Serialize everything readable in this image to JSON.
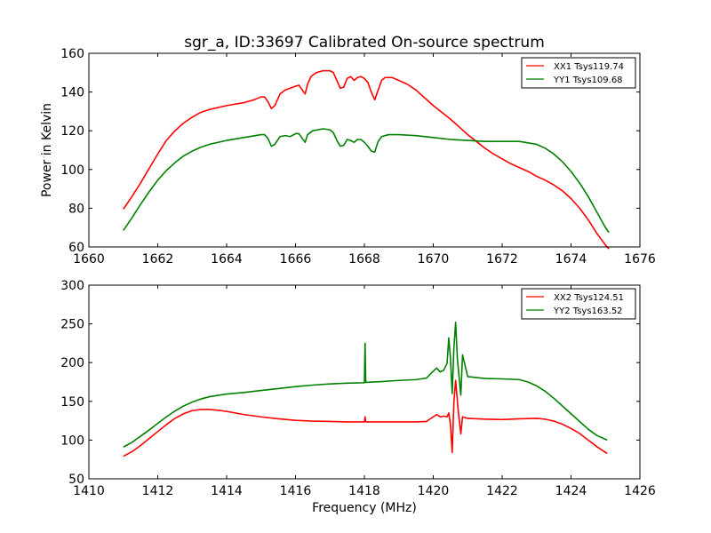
{
  "chart_data": [
    {
      "type": "line",
      "title": "sgr_a, ID:33697 Calibrated On-source spectrum",
      "xlabel": "",
      "ylabel": "Power in Kelvin",
      "xlim": [
        1660,
        1676
      ],
      "ylim": [
        60,
        160
      ],
      "xticks": [
        "1660",
        "1662",
        "1664",
        "1666",
        "1668",
        "1670",
        "1672",
        "1674",
        "1676"
      ],
      "yticks": [
        "60",
        "80",
        "100",
        "120",
        "140",
        "160"
      ],
      "grid": false,
      "legend": "top-right",
      "series": [
        {
          "name": "XX1 Tsys119.74",
          "color": "#ff0000",
          "points": [
            [
              1661.0,
              79.5
            ],
            [
              1661.25,
              86
            ],
            [
              1661.5,
              93
            ],
            [
              1661.75,
              100.5
            ],
            [
              1662.0,
              108
            ],
            [
              1662.25,
              115
            ],
            [
              1662.5,
              120
            ],
            [
              1662.75,
              124
            ],
            [
              1663.0,
              127
            ],
            [
              1663.25,
              129.5
            ],
            [
              1663.5,
              131
            ],
            [
              1663.75,
              132
            ],
            [
              1664.0,
              133
            ],
            [
              1664.5,
              134.5
            ],
            [
              1664.8,
              136
            ],
            [
              1665.0,
              137.5
            ],
            [
              1665.1,
              137.5
            ],
            [
              1665.2,
              135
            ],
            [
              1665.3,
              131.5
            ],
            [
              1665.4,
              133
            ],
            [
              1665.55,
              139
            ],
            [
              1665.7,
              141
            ],
            [
              1665.85,
              142
            ],
            [
              1666.0,
              143
            ],
            [
              1666.1,
              143.5
            ],
            [
              1666.2,
              141
            ],
            [
              1666.28,
              139
            ],
            [
              1666.35,
              144
            ],
            [
              1666.45,
              148
            ],
            [
              1666.6,
              150
            ],
            [
              1666.8,
              151
            ],
            [
              1667.0,
              151
            ],
            [
              1667.1,
              150
            ],
            [
              1667.2,
              146
            ],
            [
              1667.3,
              142
            ],
            [
              1667.4,
              142.5
            ],
            [
              1667.5,
              147
            ],
            [
              1667.6,
              148
            ],
            [
              1667.7,
              146
            ],
            [
              1667.8,
              147.5
            ],
            [
              1667.9,
              148
            ],
            [
              1668.0,
              147
            ],
            [
              1668.1,
              145
            ],
            [
              1668.2,
              140
            ],
            [
              1668.3,
              136
            ],
            [
              1668.4,
              141
            ],
            [
              1668.5,
              146
            ],
            [
              1668.6,
              147.5
            ],
            [
              1668.8,
              147.5
            ],
            [
              1669.0,
              146
            ],
            [
              1669.25,
              144
            ],
            [
              1669.5,
              141
            ],
            [
              1669.75,
              137
            ],
            [
              1670.0,
              133
            ],
            [
              1670.25,
              129.5
            ],
            [
              1670.5,
              126
            ],
            [
              1670.75,
              122
            ],
            [
              1671.0,
              118
            ],
            [
              1671.25,
              114.5
            ],
            [
              1671.5,
              111
            ],
            [
              1671.75,
              108
            ],
            [
              1672.0,
              105.5
            ],
            [
              1672.25,
              103
            ],
            [
              1672.5,
              101
            ],
            [
              1672.75,
              99
            ],
            [
              1673.0,
              96.5
            ],
            [
              1673.25,
              94.5
            ],
            [
              1673.5,
              92
            ],
            [
              1673.75,
              89
            ],
            [
              1674.0,
              85
            ],
            [
              1674.25,
              80
            ],
            [
              1674.5,
              74
            ],
            [
              1674.75,
              67
            ],
            [
              1675.0,
              61
            ],
            [
              1675.1,
              59
            ]
          ]
        },
        {
          "name": "YY1 Tsys109.68",
          "color": "#008000",
          "points": [
            [
              1661.0,
              68.5
            ],
            [
              1661.25,
              75
            ],
            [
              1661.5,
              82
            ],
            [
              1661.75,
              88.5
            ],
            [
              1662.0,
              94.5
            ],
            [
              1662.25,
              99.5
            ],
            [
              1662.5,
              103.5
            ],
            [
              1662.75,
              107
            ],
            [
              1663.0,
              109.5
            ],
            [
              1663.25,
              111.5
            ],
            [
              1663.5,
              113
            ],
            [
              1663.75,
              114
            ],
            [
              1664.0,
              115
            ],
            [
              1664.5,
              116.5
            ],
            [
              1665.0,
              118
            ],
            [
              1665.1,
              118
            ],
            [
              1665.2,
              116
            ],
            [
              1665.3,
              112
            ],
            [
              1665.4,
              113
            ],
            [
              1665.55,
              117
            ],
            [
              1665.7,
              117.5
            ],
            [
              1665.85,
              117
            ],
            [
              1666.0,
              118.5
            ],
            [
              1666.1,
              118.5
            ],
            [
              1666.2,
              116
            ],
            [
              1666.28,
              114
            ],
            [
              1666.35,
              118
            ],
            [
              1666.5,
              120
            ],
            [
              1666.8,
              121
            ],
            [
              1667.0,
              120.5
            ],
            [
              1667.1,
              119
            ],
            [
              1667.2,
              115
            ],
            [
              1667.3,
              112
            ],
            [
              1667.4,
              112.5
            ],
            [
              1667.5,
              115.5
            ],
            [
              1667.6,
              115
            ],
            [
              1667.7,
              114
            ],
            [
              1667.8,
              115.5
            ],
            [
              1667.9,
              115.5
            ],
            [
              1668.0,
              114
            ],
            [
              1668.1,
              112
            ],
            [
              1668.2,
              109.5
            ],
            [
              1668.3,
              109
            ],
            [
              1668.4,
              114.5
            ],
            [
              1668.5,
              117
            ],
            [
              1668.7,
              118
            ],
            [
              1669.0,
              118
            ],
            [
              1669.5,
              117.5
            ],
            [
              1670.0,
              116.5
            ],
            [
              1670.5,
              115.5
            ],
            [
              1671.0,
              115
            ],
            [
              1671.5,
              114.5
            ],
            [
              1672.0,
              114.5
            ],
            [
              1672.5,
              114.5
            ],
            [
              1673.0,
              113
            ],
            [
              1673.25,
              111
            ],
            [
              1673.5,
              108
            ],
            [
              1673.75,
              104
            ],
            [
              1674.0,
              99
            ],
            [
              1674.25,
              93
            ],
            [
              1674.5,
              86
            ],
            [
              1674.75,
              78
            ],
            [
              1675.0,
              70
            ],
            [
              1675.1,
              67.5
            ]
          ]
        }
      ]
    },
    {
      "type": "line",
      "title": "",
      "xlabel": "Frequency (MHz)",
      "ylabel": "",
      "xlim": [
        1410,
        1426
      ],
      "ylim": [
        50,
        300
      ],
      "xticks": [
        "1410",
        "1412",
        "1414",
        "1416",
        "1418",
        "1420",
        "1422",
        "1424",
        "1426"
      ],
      "yticks": [
        "50",
        "100",
        "150",
        "200",
        "250",
        "300"
      ],
      "grid": false,
      "legend": "top-right",
      "series": [
        {
          "name": "XX2 Tsys124.51",
          "color": "#ff0000",
          "points": [
            [
              1411.0,
              79
            ],
            [
              1411.25,
              85
            ],
            [
              1411.5,
              93
            ],
            [
              1411.75,
              102
            ],
            [
              1412.0,
              111
            ],
            [
              1412.25,
              120
            ],
            [
              1412.5,
              128
            ],
            [
              1412.75,
              134
            ],
            [
              1413.0,
              138
            ],
            [
              1413.25,
              139.5
            ],
            [
              1413.5,
              139.5
            ],
            [
              1413.75,
              138.5
            ],
            [
              1414.0,
              137
            ],
            [
              1414.5,
              133
            ],
            [
              1415.0,
              130
            ],
            [
              1415.5,
              127.5
            ],
            [
              1416.0,
              125.5
            ],
            [
              1416.5,
              124.5
            ],
            [
              1417.0,
              124
            ],
            [
              1417.5,
              123.5
            ],
            [
              1418.0,
              123.5
            ],
            [
              1418.02,
              130
            ],
            [
              1418.04,
              123.5
            ],
            [
              1418.5,
              123.5
            ],
            [
              1419.0,
              123.5
            ],
            [
              1419.5,
              123.5
            ],
            [
              1419.8,
              124
            ],
            [
              1420.0,
              130
            ],
            [
              1420.1,
              133
            ],
            [
              1420.2,
              130
            ],
            [
              1420.3,
              131
            ],
            [
              1420.4,
              130
            ],
            [
              1420.45,
              135
            ],
            [
              1420.5,
              120
            ],
            [
              1420.55,
              84
            ],
            [
              1420.6,
              150
            ],
            [
              1420.65,
              177
            ],
            [
              1420.72,
              140
            ],
            [
              1420.8,
              108
            ],
            [
              1420.85,
              130
            ],
            [
              1421.0,
              128
            ],
            [
              1421.5,
              127
            ],
            [
              1422.0,
              126.5
            ],
            [
              1422.5,
              127.5
            ],
            [
              1423.0,
              128
            ],
            [
              1423.25,
              127
            ],
            [
              1423.5,
              124.5
            ],
            [
              1423.75,
              120.5
            ],
            [
              1424.0,
              115
            ],
            [
              1424.25,
              108.5
            ],
            [
              1424.5,
              100
            ],
            [
              1424.75,
              91.5
            ],
            [
              1425.0,
              84
            ],
            [
              1425.05,
              83
            ]
          ]
        },
        {
          "name": "YY2 Tsys163.52",
          "color": "#008000",
          "points": [
            [
              1411.0,
              91
            ],
            [
              1411.25,
              97
            ],
            [
              1411.5,
              105
            ],
            [
              1411.75,
              113
            ],
            [
              1412.0,
              121.5
            ],
            [
              1412.25,
              130
            ],
            [
              1412.5,
              137.5
            ],
            [
              1412.75,
              144
            ],
            [
              1413.0,
              149
            ],
            [
              1413.25,
              153
            ],
            [
              1413.5,
              156
            ],
            [
              1414.0,
              159.5
            ],
            [
              1414.5,
              161.5
            ],
            [
              1415.0,
              164
            ],
            [
              1415.5,
              166.5
            ],
            [
              1416.0,
              169
            ],
            [
              1416.5,
              171
            ],
            [
              1417.0,
              172.5
            ],
            [
              1417.5,
              173.5
            ],
            [
              1418.0,
              174
            ],
            [
              1418.02,
              225
            ],
            [
              1418.04,
              174.5
            ],
            [
              1418.5,
              175.5
            ],
            [
              1419.0,
              177
            ],
            [
              1419.5,
              178
            ],
            [
              1419.8,
              180
            ],
            [
              1420.0,
              189
            ],
            [
              1420.1,
              193
            ],
            [
              1420.2,
              188
            ],
            [
              1420.3,
              190
            ],
            [
              1420.4,
              199
            ],
            [
              1420.45,
              232
            ],
            [
              1420.5,
              205
            ],
            [
              1420.55,
              160
            ],
            [
              1420.6,
              220
            ],
            [
              1420.65,
              252
            ],
            [
              1420.7,
              205
            ],
            [
              1420.8,
              158
            ],
            [
              1420.85,
              210
            ],
            [
              1421.0,
              182
            ],
            [
              1421.5,
              179.5
            ],
            [
              1422.0,
              179
            ],
            [
              1422.5,
              178
            ],
            [
              1422.75,
              175
            ],
            [
              1423.0,
              170
            ],
            [
              1423.25,
              163
            ],
            [
              1423.5,
              154
            ],
            [
              1423.75,
              144
            ],
            [
              1424.0,
              134
            ],
            [
              1424.25,
              124
            ],
            [
              1424.5,
              114
            ],
            [
              1424.75,
              106
            ],
            [
              1425.0,
              101
            ],
            [
              1425.05,
              100
            ]
          ]
        }
      ]
    }
  ]
}
